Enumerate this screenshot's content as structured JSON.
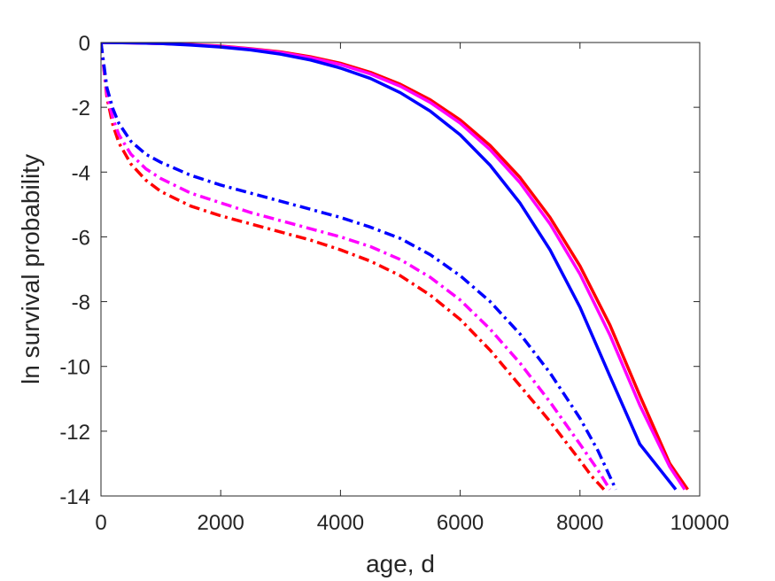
{
  "chart_data": {
    "type": "line",
    "title": "",
    "xlabel": "age, d",
    "ylabel": "ln survival probability",
    "xlim": [
      0,
      10000
    ],
    "ylim": [
      -14,
      0
    ],
    "xticks": [
      0,
      2000,
      4000,
      6000,
      8000,
      10000
    ],
    "yticks": [
      0,
      -2,
      -4,
      -6,
      -8,
      -10,
      -12,
      -14
    ],
    "xtick_labels": [
      "0",
      "2000",
      "4000",
      "6000",
      "8000",
      "10000"
    ],
    "ytick_labels": [
      "0",
      "-2",
      "-4",
      "-6",
      "-8",
      "-10",
      "-12",
      "-14"
    ],
    "grid": false,
    "legend": "none",
    "series": [
      {
        "color": "#ff0000",
        "style": "solid",
        "x": [
          0,
          500,
          1000,
          1500,
          2000,
          2500,
          3000,
          3500,
          4000,
          4500,
          5000,
          5500,
          6000,
          6500,
          7000,
          7500,
          8000,
          8500,
          9000,
          9500,
          9800
        ],
        "y": [
          0,
          -0.01,
          -0.03,
          -0.06,
          -0.11,
          -0.19,
          -0.29,
          -0.44,
          -0.64,
          -0.92,
          -1.29,
          -1.77,
          -2.39,
          -3.18,
          -4.17,
          -5.4,
          -6.9,
          -8.72,
          -10.9,
          -13.0,
          -13.8
        ]
      },
      {
        "color": "#ff00ff",
        "style": "solid",
        "x": [
          0,
          500,
          1000,
          1500,
          2000,
          2500,
          3000,
          3500,
          4000,
          4500,
          5000,
          5500,
          6000,
          6500,
          7000,
          7500,
          8000,
          8500,
          9000,
          9500,
          9750
        ],
        "y": [
          0,
          -0.01,
          -0.03,
          -0.07,
          -0.12,
          -0.2,
          -0.31,
          -0.47,
          -0.68,
          -0.97,
          -1.35,
          -1.85,
          -2.49,
          -3.31,
          -4.33,
          -5.6,
          -7.15,
          -9.03,
          -11.2,
          -13.1,
          -13.8
        ]
      },
      {
        "color": "#0000ff",
        "style": "solid",
        "x": [
          0,
          500,
          1000,
          1500,
          2000,
          2500,
          3000,
          3500,
          4000,
          4500,
          5000,
          5500,
          6000,
          6500,
          7000,
          7500,
          8000,
          8500,
          9000,
          9300,
          9600
        ],
        "y": [
          0,
          -0.01,
          -0.03,
          -0.08,
          -0.14,
          -0.23,
          -0.36,
          -0.54,
          -0.79,
          -1.11,
          -1.55,
          -2.12,
          -2.85,
          -3.79,
          -4.96,
          -6.4,
          -8.17,
          -10.3,
          -12.4,
          -13.1,
          -13.8
        ]
      },
      {
        "color": "#ff0000",
        "style": "dashdot",
        "x": [
          0,
          100,
          200,
          300,
          500,
          750,
          1000,
          1500,
          2000,
          2500,
          3000,
          3500,
          4000,
          4500,
          5000,
          5500,
          6000,
          6500,
          7000,
          7500,
          8000,
          8200,
          8400
        ],
        "y": [
          0,
          -1.7,
          -2.55,
          -3.1,
          -3.75,
          -4.25,
          -4.6,
          -5.05,
          -5.35,
          -5.6,
          -5.85,
          -6.1,
          -6.4,
          -6.75,
          -7.2,
          -7.8,
          -8.55,
          -9.5,
          -10.6,
          -11.7,
          -12.9,
          -13.4,
          -13.8
        ]
      },
      {
        "color": "#ff00ff",
        "style": "dashdot",
        "x": [
          0,
          100,
          200,
          300,
          500,
          750,
          1000,
          1500,
          2000,
          2500,
          3000,
          3500,
          4000,
          4500,
          5000,
          5500,
          6000,
          6500,
          7000,
          7500,
          8000,
          8300,
          8500
        ],
        "y": [
          0,
          -1.6,
          -2.35,
          -2.85,
          -3.45,
          -3.9,
          -4.2,
          -4.65,
          -4.95,
          -5.25,
          -5.5,
          -5.75,
          -6.0,
          -6.3,
          -6.7,
          -7.25,
          -7.95,
          -8.85,
          -9.9,
          -11.1,
          -12.4,
          -13.2,
          -13.8
        ]
      },
      {
        "color": "#0000ff",
        "style": "dashdot",
        "x": [
          0,
          100,
          200,
          300,
          500,
          750,
          1000,
          1500,
          2000,
          2500,
          3000,
          3500,
          4000,
          4500,
          5000,
          5500,
          6000,
          6500,
          7000,
          7500,
          8000,
          8300,
          8600
        ],
        "y": [
          0,
          -1.4,
          -2.05,
          -2.5,
          -3.05,
          -3.45,
          -3.7,
          -4.1,
          -4.4,
          -4.65,
          -4.9,
          -5.15,
          -5.4,
          -5.7,
          -6.05,
          -6.55,
          -7.2,
          -8.0,
          -9.0,
          -10.2,
          -11.6,
          -12.6,
          -13.8
        ]
      }
    ]
  }
}
